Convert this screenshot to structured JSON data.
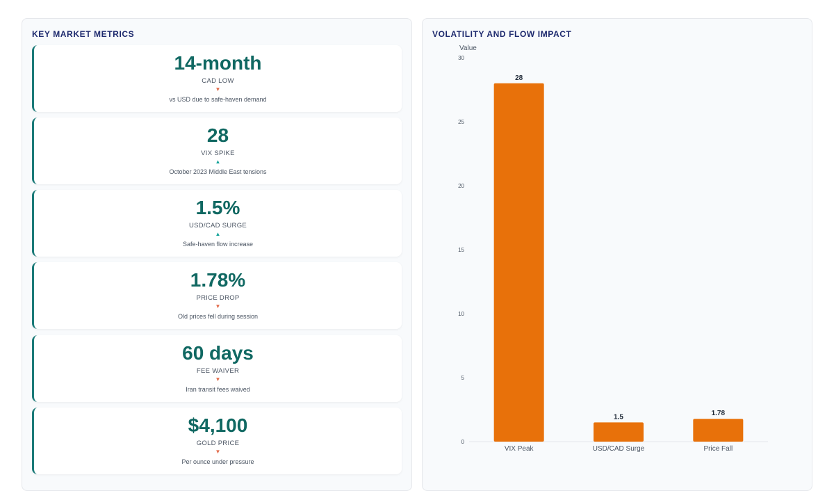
{
  "metrics_panel": {
    "title": "KEY MARKET METRICS",
    "cards": [
      {
        "value": "14-month",
        "label": "CAD LOW",
        "direction": "down",
        "arrow": "▼",
        "note": "vs USD due to safe-haven demand"
      },
      {
        "value": "28",
        "label": "VIX SPIKE",
        "direction": "up",
        "arrow": "▲",
        "note": "October 2023 Middle East tensions"
      },
      {
        "value": "1.5%",
        "label": "USD/CAD SURGE",
        "direction": "up",
        "arrow": "▲",
        "note": "Safe-haven flow increase"
      },
      {
        "value": "1.78%",
        "label": "PRICE DROP",
        "direction": "down",
        "arrow": "▼",
        "note": "Old prices fell during session"
      },
      {
        "value": "60 days",
        "label": "FEE WAIVER",
        "direction": "down",
        "arrow": "▼",
        "note": "Iran transit fees waived"
      },
      {
        "value": "$4,100",
        "label": "GOLD PRICE",
        "direction": "down",
        "arrow": "▼",
        "note": "Per ounce under pressure"
      }
    ],
    "colors": {
      "accent": "#1a7a78",
      "value": "#106862",
      "down": "#e26b4a",
      "up": "#14a39a"
    }
  },
  "chart_panel": {
    "title": "VOLATILITY AND FLOW IMPACT"
  },
  "chart_data": {
    "type": "bar",
    "title": "VOLATILITY AND FLOW IMPACT",
    "ylabel": "Value",
    "xlabel": "",
    "categories": [
      "VIX Peak",
      "USD/CAD Surge",
      "Price Fall"
    ],
    "values": [
      28,
      1.5,
      1.78
    ],
    "value_labels": [
      "28",
      "1.5",
      "1.78"
    ],
    "ylim": [
      0,
      30
    ],
    "yticks": [
      0,
      5,
      10,
      15,
      20,
      25,
      30
    ],
    "grid": false,
    "legend": "none",
    "bar_color": "#e8710a"
  }
}
